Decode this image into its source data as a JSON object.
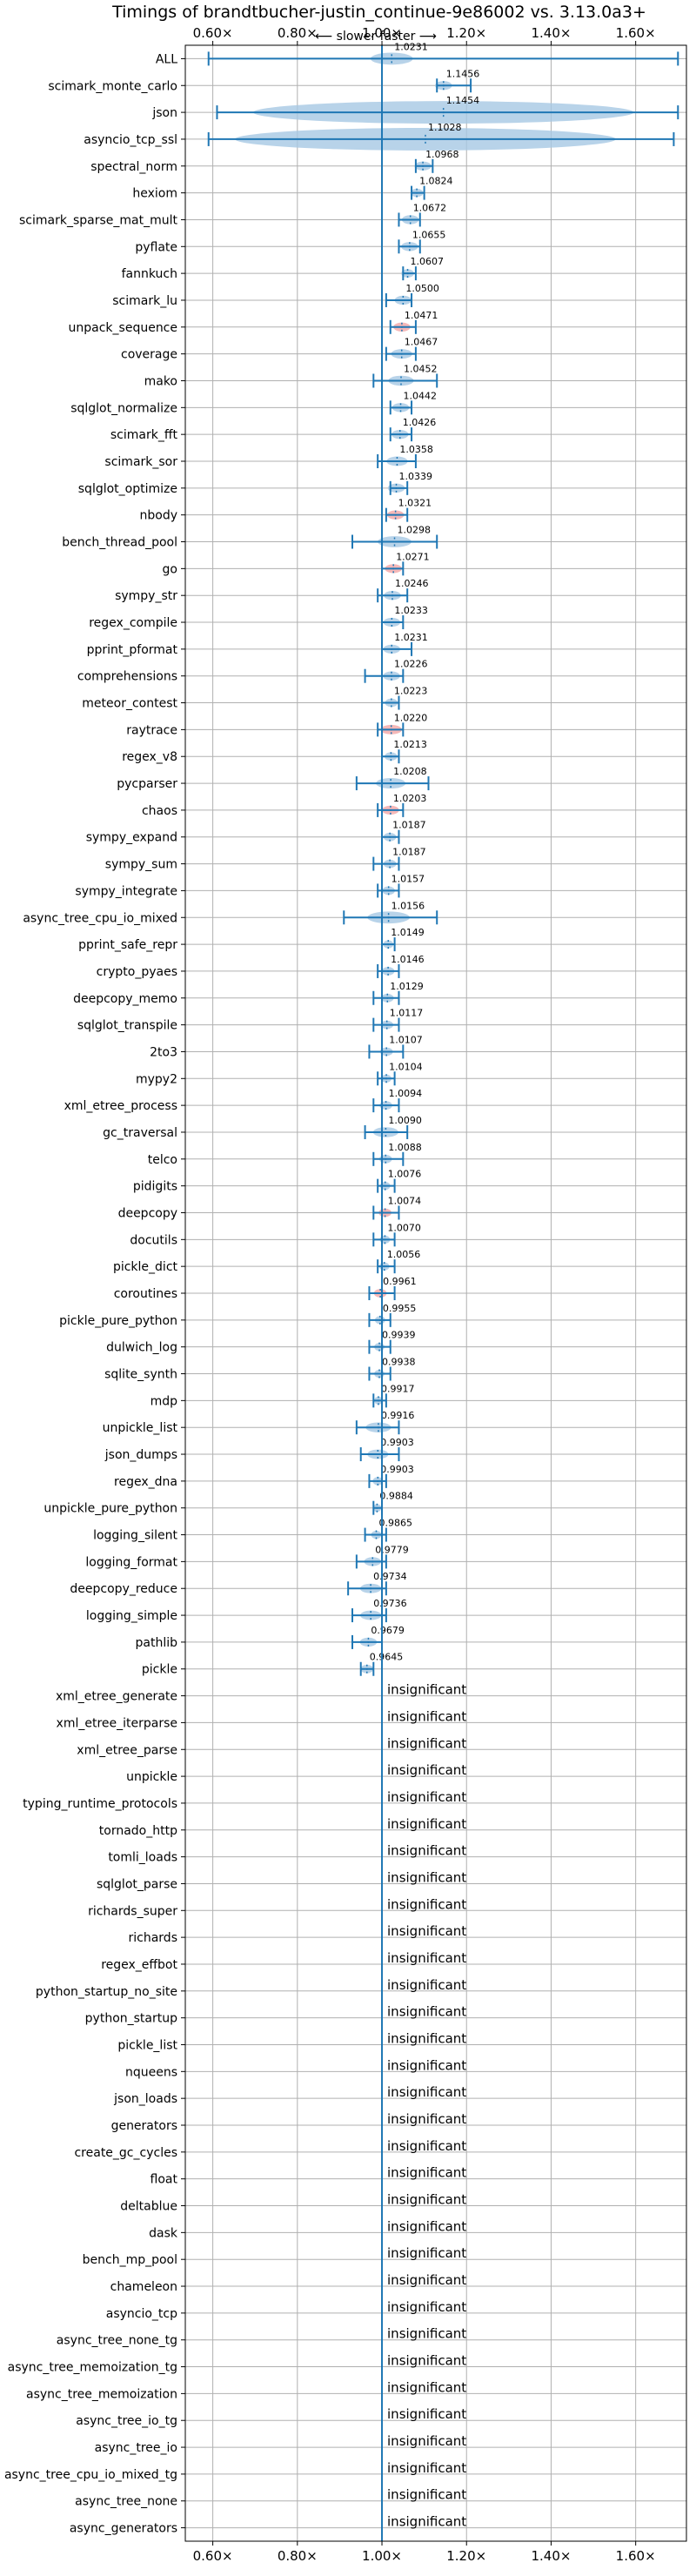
{
  "chart_data": {
    "type": "violin",
    "title": "Timings of brandtbucher-justin_continue-9e86002 vs. 3.13.0a3+",
    "subtitle": "⟵ slower    faster ⟶",
    "xlim": [
      0.535,
      1.72
    ],
    "x_ticks": [
      0.6,
      0.8,
      1.0,
      1.2,
      1.4,
      1.6
    ],
    "x_tick_labels": [
      "0.60×",
      "0.80×",
      "1.00×",
      "1.20×",
      "1.40×",
      "1.60×"
    ],
    "reference_line": 1.0,
    "grid": true,
    "insignificant_label": "insignificant",
    "colors": {
      "accent": "#1f77b4",
      "violin": "#a6c8e4",
      "regression": "#f3a6a6"
    },
    "benchmarks": [
      {
        "name": "ALL",
        "value": 1.0231,
        "label": "1.0231",
        "min": 0.59,
        "max": 1.7,
        "spread": 0.05
      },
      {
        "name": "scimark_monte_carlo",
        "value": 1.1456,
        "label": "1.1456",
        "min": 1.13,
        "max": 1.21,
        "spread": 0.02
      },
      {
        "name": "json",
        "value": 1.1454,
        "label": "1.1454",
        "min": 0.61,
        "max": 1.7,
        "spread": 0.45
      },
      {
        "name": "asyncio_tcp_ssl",
        "value": 1.1028,
        "label": "1.1028",
        "min": 0.59,
        "max": 1.69,
        "spread": 0.45
      },
      {
        "name": "spectral_norm",
        "value": 1.0968,
        "label": "1.0968",
        "min": 1.08,
        "max": 1.12,
        "spread": 0.02
      },
      {
        "name": "hexiom",
        "value": 1.0824,
        "label": "1.0824",
        "min": 1.07,
        "max": 1.1,
        "spread": 0.015
      },
      {
        "name": "scimark_sparse_mat_mult",
        "value": 1.0672,
        "label": "1.0672",
        "min": 1.04,
        "max": 1.09,
        "spread": 0.02
      },
      {
        "name": "pyflate",
        "value": 1.0655,
        "label": "1.0655",
        "min": 1.04,
        "max": 1.09,
        "spread": 0.02
      },
      {
        "name": "fannkuch",
        "value": 1.0607,
        "label": "1.0607",
        "min": 1.05,
        "max": 1.08,
        "spread": 0.015
      },
      {
        "name": "scimark_lu",
        "value": 1.05,
        "label": "1.0500",
        "min": 1.01,
        "max": 1.07,
        "spread": 0.02
      },
      {
        "name": "unpack_sequence",
        "value": 1.0471,
        "label": "1.0471",
        "min": 1.02,
        "max": 1.08,
        "spread": 0.02,
        "regression": true
      },
      {
        "name": "coverage",
        "value": 1.0467,
        "label": "1.0467",
        "min": 1.01,
        "max": 1.08,
        "spread": 0.025
      },
      {
        "name": "mako",
        "value": 1.0452,
        "label": "1.0452",
        "min": 0.98,
        "max": 1.13,
        "spread": 0.03
      },
      {
        "name": "sqlglot_normalize",
        "value": 1.0442,
        "label": "1.0442",
        "min": 1.02,
        "max": 1.07,
        "spread": 0.02
      },
      {
        "name": "scimark_fft",
        "value": 1.0426,
        "label": "1.0426",
        "min": 1.02,
        "max": 1.07,
        "spread": 0.02
      },
      {
        "name": "scimark_sor",
        "value": 1.0358,
        "label": "1.0358",
        "min": 0.99,
        "max": 1.08,
        "spread": 0.025
      },
      {
        "name": "sqlglot_optimize",
        "value": 1.0339,
        "label": "1.0339",
        "min": 1.02,
        "max": 1.06,
        "spread": 0.02
      },
      {
        "name": "nbody",
        "value": 1.0321,
        "label": "1.0321",
        "min": 1.01,
        "max": 1.06,
        "spread": 0.02,
        "regression": true
      },
      {
        "name": "bench_thread_pool",
        "value": 1.0298,
        "label": "1.0298",
        "min": 0.93,
        "max": 1.13,
        "spread": 0.04
      },
      {
        "name": "go",
        "value": 1.0271,
        "label": "1.0271",
        "min": 1.0,
        "max": 1.05,
        "spread": 0.02,
        "regression": true
      },
      {
        "name": "sympy_str",
        "value": 1.0246,
        "label": "1.0246",
        "min": 0.99,
        "max": 1.06,
        "spread": 0.02
      },
      {
        "name": "regex_compile",
        "value": 1.0233,
        "label": "1.0233",
        "min": 1.0,
        "max": 1.05,
        "spread": 0.02
      },
      {
        "name": "pprint_pformat",
        "value": 1.0231,
        "label": "1.0231",
        "min": 1.0,
        "max": 1.07,
        "spread": 0.02
      },
      {
        "name": "comprehensions",
        "value": 1.0226,
        "label": "1.0226",
        "min": 0.96,
        "max": 1.05,
        "spread": 0.02
      },
      {
        "name": "meteor_contest",
        "value": 1.0223,
        "label": "1.0223",
        "min": 1.0,
        "max": 1.04,
        "spread": 0.015
      },
      {
        "name": "raytrace",
        "value": 1.022,
        "label": "1.0220",
        "min": 0.99,
        "max": 1.05,
        "spread": 0.025,
        "regression": true
      },
      {
        "name": "regex_v8",
        "value": 1.0213,
        "label": "1.0213",
        "min": 1.0,
        "max": 1.04,
        "spread": 0.015
      },
      {
        "name": "pycparser",
        "value": 1.0208,
        "label": "1.0208",
        "min": 0.94,
        "max": 1.11,
        "spread": 0.035
      },
      {
        "name": "chaos",
        "value": 1.0203,
        "label": "1.0203",
        "min": 0.99,
        "max": 1.05,
        "spread": 0.02,
        "regression": true
      },
      {
        "name": "sympy_expand",
        "value": 1.0187,
        "label": "1.0187",
        "min": 1.0,
        "max": 1.04,
        "spread": 0.015
      },
      {
        "name": "sympy_sum",
        "value": 1.0187,
        "label": "1.0187",
        "min": 0.98,
        "max": 1.04,
        "spread": 0.015
      },
      {
        "name": "sympy_integrate",
        "value": 1.0157,
        "label": "1.0157",
        "min": 0.99,
        "max": 1.04,
        "spread": 0.015
      },
      {
        "name": "async_tree_cpu_io_mixed",
        "value": 1.0156,
        "label": "1.0156",
        "min": 0.91,
        "max": 1.13,
        "spread": 0.05
      },
      {
        "name": "pprint_safe_repr",
        "value": 1.0149,
        "label": "1.0149",
        "min": 1.0,
        "max": 1.03,
        "spread": 0.012
      },
      {
        "name": "crypto_pyaes",
        "value": 1.0146,
        "label": "1.0146",
        "min": 0.99,
        "max": 1.04,
        "spread": 0.015
      },
      {
        "name": "deepcopy_memo",
        "value": 1.0129,
        "label": "1.0129",
        "min": 0.98,
        "max": 1.04,
        "spread": 0.015
      },
      {
        "name": "sqlglot_transpile",
        "value": 1.0117,
        "label": "1.0117",
        "min": 0.98,
        "max": 1.04,
        "spread": 0.015
      },
      {
        "name": "2to3",
        "value": 1.0107,
        "label": "1.0107",
        "min": 0.97,
        "max": 1.05,
        "spread": 0.015
      },
      {
        "name": "mypy2",
        "value": 1.0104,
        "label": "1.0104",
        "min": 0.99,
        "max": 1.03,
        "spread": 0.012
      },
      {
        "name": "xml_etree_process",
        "value": 1.0094,
        "label": "1.0094",
        "min": 0.98,
        "max": 1.04,
        "spread": 0.015
      },
      {
        "name": "gc_traversal",
        "value": 1.009,
        "label": "1.0090",
        "min": 0.96,
        "max": 1.06,
        "spread": 0.03
      },
      {
        "name": "telco",
        "value": 1.0088,
        "label": "1.0088",
        "min": 0.98,
        "max": 1.05,
        "spread": 0.015
      },
      {
        "name": "pidigits",
        "value": 1.0076,
        "label": "1.0076",
        "min": 0.99,
        "max": 1.03,
        "spread": 0.012
      },
      {
        "name": "deepcopy",
        "value": 1.0074,
        "label": "1.0074",
        "min": 0.98,
        "max": 1.04,
        "spread": 0.015,
        "regression": true
      },
      {
        "name": "docutils",
        "value": 1.007,
        "label": "1.0070",
        "min": 0.98,
        "max": 1.03,
        "spread": 0.012
      },
      {
        "name": "pickle_dict",
        "value": 1.0056,
        "label": "1.0056",
        "min": 0.99,
        "max": 1.03,
        "spread": 0.012
      },
      {
        "name": "coroutines",
        "value": 0.9961,
        "label": "0.9961",
        "min": 0.97,
        "max": 1.03,
        "spread": 0.015,
        "regression": true
      },
      {
        "name": "pickle_pure_python",
        "value": 0.9955,
        "label": "0.9955",
        "min": 0.97,
        "max": 1.02,
        "spread": 0.012
      },
      {
        "name": "dulwich_log",
        "value": 0.9939,
        "label": "0.9939",
        "min": 0.97,
        "max": 1.02,
        "spread": 0.012
      },
      {
        "name": "sqlite_synth",
        "value": 0.9938,
        "label": "0.9938",
        "min": 0.97,
        "max": 1.02,
        "spread": 0.012
      },
      {
        "name": "mdp",
        "value": 0.9917,
        "label": "0.9917",
        "min": 0.98,
        "max": 1.01,
        "spread": 0.01
      },
      {
        "name": "unpickle_list",
        "value": 0.9916,
        "label": "0.9916",
        "min": 0.94,
        "max": 1.04,
        "spread": 0.03
      },
      {
        "name": "json_dumps",
        "value": 0.9903,
        "label": "0.9903",
        "min": 0.95,
        "max": 1.04,
        "spread": 0.025
      },
      {
        "name": "regex_dna",
        "value": 0.9903,
        "label": "0.9903",
        "min": 0.97,
        "max": 1.01,
        "spread": 0.012
      },
      {
        "name": "unpickle_pure_python",
        "value": 0.9884,
        "label": "0.9884",
        "min": 0.98,
        "max": 1.0,
        "spread": 0.01
      },
      {
        "name": "logging_silent",
        "value": 0.9865,
        "label": "0.9865",
        "min": 0.96,
        "max": 1.01,
        "spread": 0.012
      },
      {
        "name": "logging_format",
        "value": 0.9779,
        "label": "0.9779",
        "min": 0.94,
        "max": 1.01,
        "spread": 0.02
      },
      {
        "name": "deepcopy_reduce",
        "value": 0.9734,
        "label": "0.9734",
        "min": 0.92,
        "max": 1.01,
        "spread": 0.025
      },
      {
        "name": "logging_simple",
        "value": 0.9736,
        "label": "0.9736",
        "min": 0.93,
        "max": 1.01,
        "spread": 0.025
      },
      {
        "name": "pathlib",
        "value": 0.9679,
        "label": "0.9679",
        "min": 0.93,
        "max": 1.0,
        "spread": 0.02
      },
      {
        "name": "pickle",
        "value": 0.9645,
        "label": "0.9645",
        "min": 0.95,
        "max": 0.98,
        "spread": 0.015
      },
      {
        "name": "xml_etree_generate",
        "insignificant": true
      },
      {
        "name": "xml_etree_iterparse",
        "insignificant": true
      },
      {
        "name": "xml_etree_parse",
        "insignificant": true
      },
      {
        "name": "unpickle",
        "insignificant": true
      },
      {
        "name": "typing_runtime_protocols",
        "insignificant": true
      },
      {
        "name": "tornado_http",
        "insignificant": true
      },
      {
        "name": "tomli_loads",
        "insignificant": true
      },
      {
        "name": "sqlglot_parse",
        "insignificant": true
      },
      {
        "name": "richards_super",
        "insignificant": true
      },
      {
        "name": "richards",
        "insignificant": true
      },
      {
        "name": "regex_effbot",
        "insignificant": true
      },
      {
        "name": "python_startup_no_site",
        "insignificant": true
      },
      {
        "name": "python_startup",
        "insignificant": true
      },
      {
        "name": "pickle_list",
        "insignificant": true
      },
      {
        "name": "nqueens",
        "insignificant": true
      },
      {
        "name": "json_loads",
        "insignificant": true
      },
      {
        "name": "generators",
        "insignificant": true
      },
      {
        "name": "create_gc_cycles",
        "insignificant": true
      },
      {
        "name": "float",
        "insignificant": true
      },
      {
        "name": "deltablue",
        "insignificant": true
      },
      {
        "name": "dask",
        "insignificant": true
      },
      {
        "name": "bench_mp_pool",
        "insignificant": true
      },
      {
        "name": "chameleon",
        "insignificant": true
      },
      {
        "name": "asyncio_tcp",
        "insignificant": true
      },
      {
        "name": "async_tree_none_tg",
        "insignificant": true
      },
      {
        "name": "async_tree_memoization_tg",
        "insignificant": true
      },
      {
        "name": "async_tree_memoization",
        "insignificant": true
      },
      {
        "name": "async_tree_io_tg",
        "insignificant": true
      },
      {
        "name": "async_tree_io",
        "insignificant": true
      },
      {
        "name": "async_tree_cpu_io_mixed_tg",
        "insignificant": true
      },
      {
        "name": "async_tree_none",
        "insignificant": true
      },
      {
        "name": "async_generators",
        "insignificant": true
      }
    ]
  }
}
